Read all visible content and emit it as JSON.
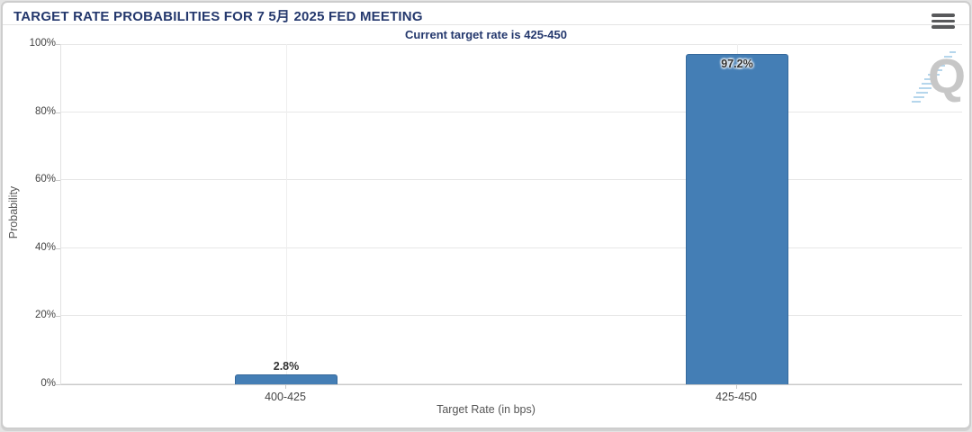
{
  "header": {
    "title": "TARGET RATE PROBABILITIES FOR 7 5月 2025 FED MEETING"
  },
  "chart_data": {
    "type": "bar",
    "title": "TARGET RATE PROBABILITIES FOR 7 5月 2025 FED MEETING",
    "subtitle": "Current target rate is 425-450",
    "categories": [
      "400-425",
      "425-450"
    ],
    "values": [
      2.8,
      97.2
    ],
    "data_labels": [
      "2.8%",
      "97.2%"
    ],
    "xlabel": "Target Rate (in bps)",
    "ylabel": "Probability",
    "ylim": [
      0,
      100
    ],
    "yticks": [
      0,
      20,
      40,
      60,
      80,
      100
    ],
    "ytick_labels": [
      "0%",
      "20%",
      "40%",
      "60%",
      "80%",
      "100%"
    ],
    "grid": true,
    "legend": false,
    "watermark_letter": "Q",
    "colors": {
      "bar": "#447eb5",
      "bar_border": "#35699c",
      "title_text": "#24386d",
      "axis_text": "#555555",
      "grid_line": "#e7e7e7",
      "axis_line": "#c9c9c9",
      "data_label_text": "#333333",
      "watermark_dash": "#b5d6ec"
    }
  }
}
